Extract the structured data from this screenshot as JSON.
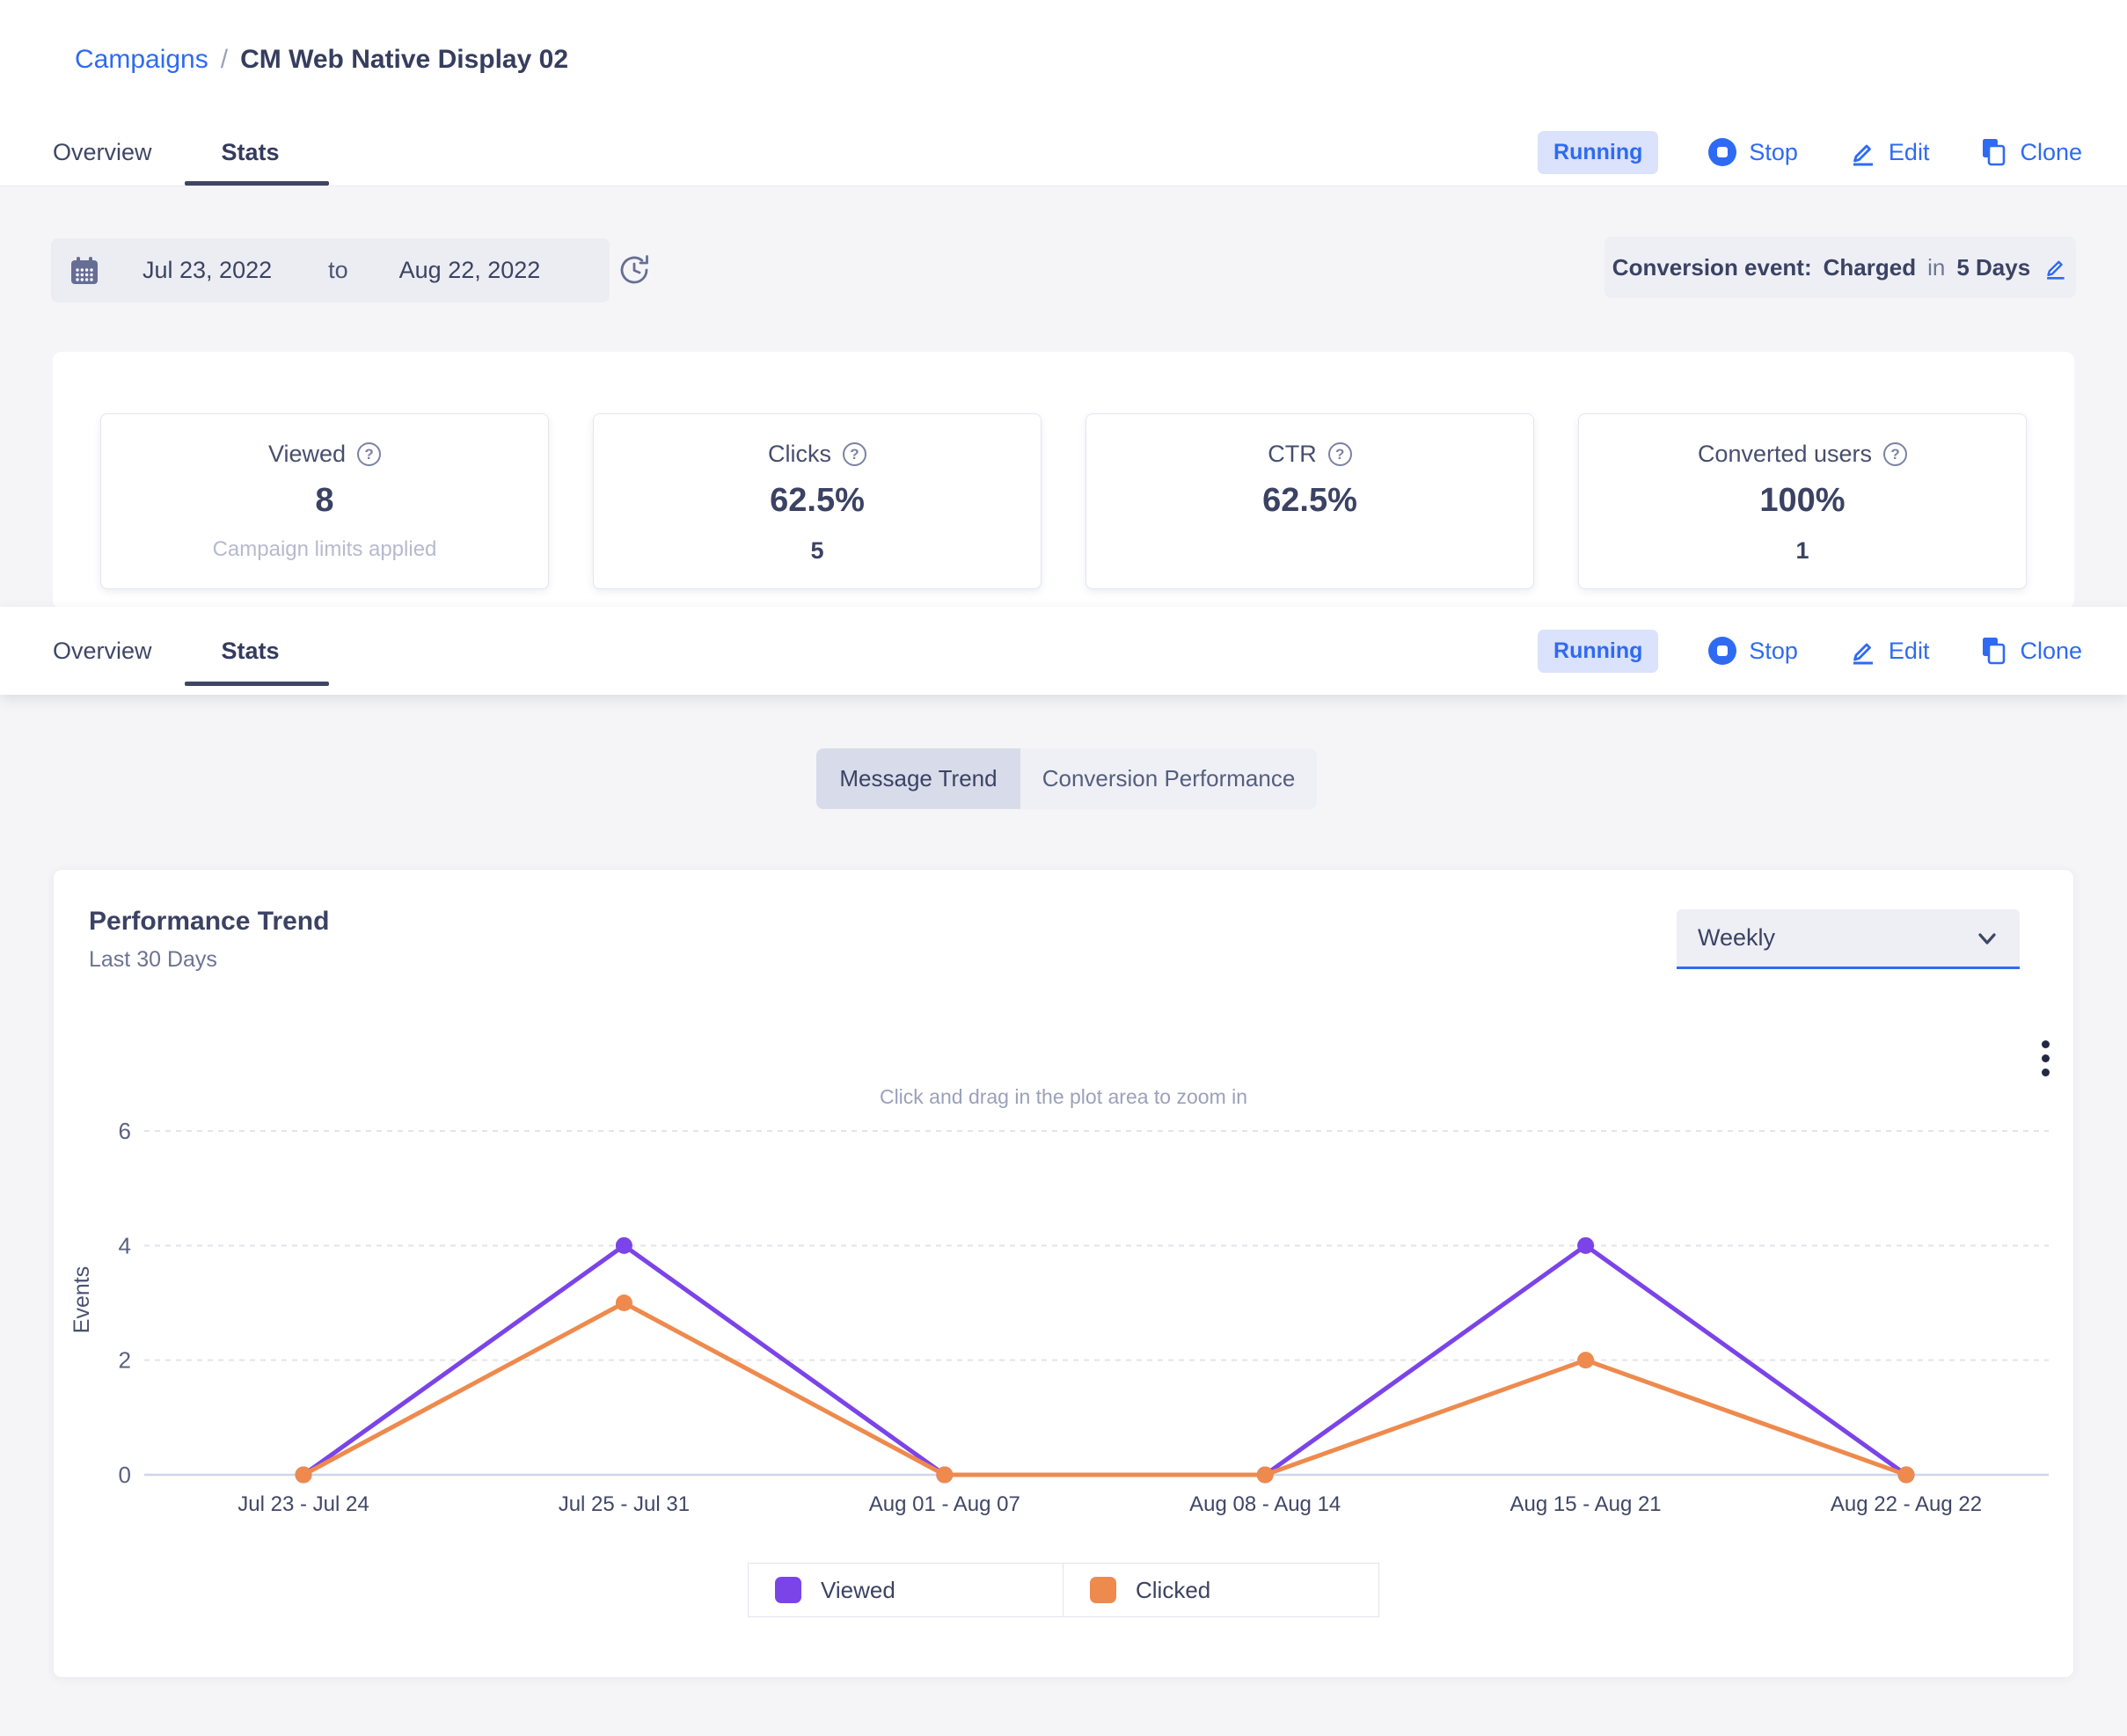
{
  "breadcrumb": {
    "parent": "Campaigns",
    "separator": "/",
    "current": "CM Web Native Display 02"
  },
  "tabs": {
    "overview": "Overview",
    "stats": "Stats"
  },
  "actions": {
    "status": "Running",
    "stop": "Stop",
    "edit": "Edit",
    "clone": "Clone"
  },
  "date_range": {
    "start": "Jul 23, 2022",
    "to": "to",
    "end": "Aug 22, 2022"
  },
  "conversion": {
    "label": "Conversion event:",
    "event": "Charged",
    "in": "in",
    "window": "5 Days"
  },
  "stats": {
    "viewed": {
      "label": "Viewed",
      "value": "8",
      "sub": "Campaign limits applied"
    },
    "clicks": {
      "label": "Clicks",
      "value": "62.5%",
      "sub": "5"
    },
    "ctr": {
      "label": "CTR",
      "value": "62.5%"
    },
    "converted": {
      "label": "Converted users",
      "value": "100%",
      "sub": "1"
    }
  },
  "toggle": {
    "message_trend": "Message Trend",
    "conversion_performance": "Conversion Performance"
  },
  "chart_card": {
    "title": "Performance Trend",
    "subtitle": "Last 30 Days",
    "interval": "Weekly",
    "hint": "Click and drag in the plot area to zoom in"
  },
  "chart_data": {
    "type": "line",
    "title": "Performance Trend",
    "categories": [
      "Jul 23 - Jul 24",
      "Jul 25 - Jul 31",
      "Aug 01 - Aug 07",
      "Aug 08 - Aug 14",
      "Aug 15 - Aug 21",
      "Aug 22 - Aug 22"
    ],
    "series": [
      {
        "name": "Viewed",
        "color": "#7b44e8",
        "values": [
          0,
          4,
          0,
          0,
          4,
          0
        ]
      },
      {
        "name": "Clicked",
        "color": "#ee8a4d",
        "values": [
          0,
          3,
          0,
          0,
          2,
          0
        ]
      }
    ],
    "ylabel": "Events",
    "yticks": [
      0,
      2,
      4,
      6
    ],
    "ylim": [
      0,
      6
    ],
    "grid": true,
    "legend_position": "bottom"
  },
  "colors": {
    "accent_blue": "#2e6bf2",
    "viewed_purple": "#7b44e8",
    "clicked_orange": "#ee8a4d",
    "badge_bg": "#dbe2fb"
  }
}
